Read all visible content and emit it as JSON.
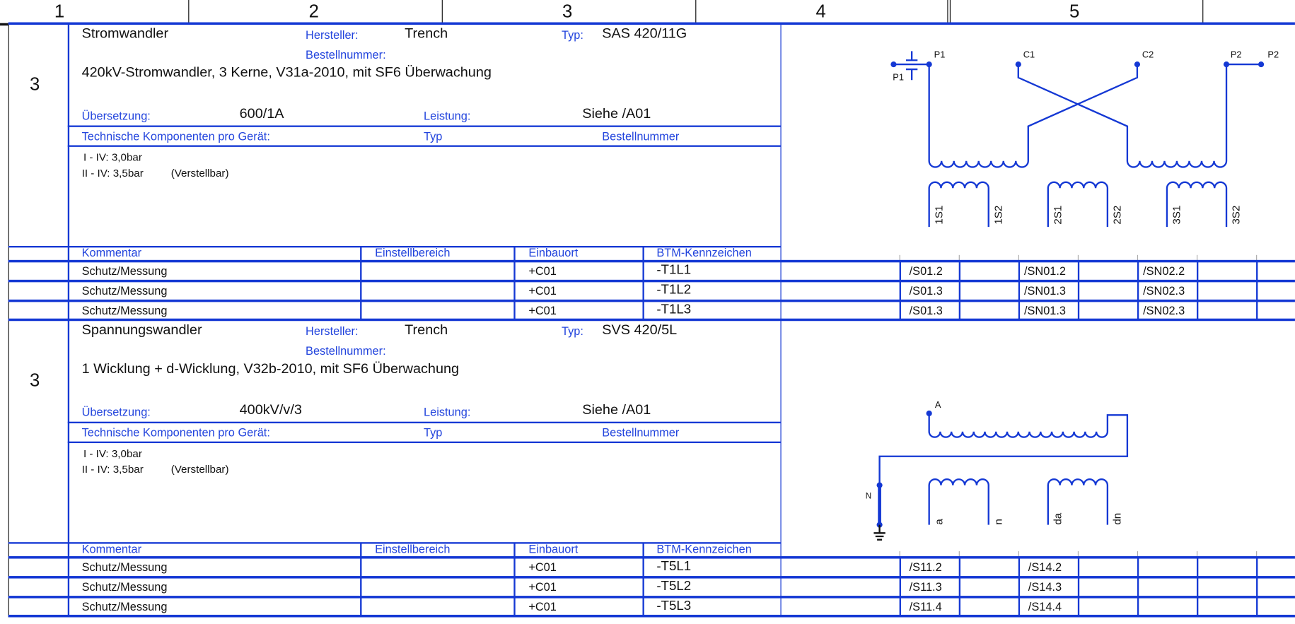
{
  "header": {
    "columns": [
      "1",
      "2",
      "3",
      "4",
      "5"
    ]
  },
  "colors": {
    "line": "#1438d4",
    "label": "#2244dd",
    "text": "#111111"
  },
  "sections": [
    {
      "index": "3",
      "title": "Stromwandler",
      "manufacturer_label": "Hersteller:",
      "manufacturer": "Trench",
      "type_label": "Typ:",
      "type": "SAS 420/11G",
      "order_label": "Bestellnummer:",
      "description": "420kV-Stromwandler, 3 Kerne, V31a-2010, mit SF6 Überwachung",
      "ratio_label": "Übersetzung:",
      "ratio": "600/1A",
      "power_label": "Leistung:",
      "power": "Siehe /A01",
      "components": {
        "label": "Technische Komponenten pro Gerät:",
        "type": "Typ",
        "order": "Bestellnummer"
      },
      "notes": [
        "I - IV: 3,0bar",
        "II - IV: 3,5bar",
        "(Verstellbar)"
      ],
      "table_headers": [
        "Kommentar",
        "Einstellbereich",
        "Einbauort",
        "BTM-Kennzeichen"
      ],
      "rows": [
        {
          "comment": "Schutz/Messung",
          "range": "",
          "location": "+C01",
          "btm": "-T1L1",
          "refs": [
            "/S01.2",
            "/SN01.2",
            "/SN02.2"
          ]
        },
        {
          "comment": "Schutz/Messung",
          "range": "",
          "location": "+C01",
          "btm": "-T1L2",
          "refs": [
            "/S01.3",
            "/SN01.3",
            "/SN02.3"
          ]
        },
        {
          "comment": "Schutz/Messung",
          "range": "",
          "location": "+C01",
          "btm": "-T1L3",
          "refs": [
            "/S01.3",
            "/SN01.3",
            "/SN02.3"
          ]
        }
      ]
    },
    {
      "index": "3",
      "title": "Spannungswandler",
      "manufacturer_label": "Hersteller:",
      "manufacturer": "Trench",
      "type_label": "Typ:",
      "type": "SVS 420/5L",
      "order_label": "Bestellnummer:",
      "description": "1 Wicklung + d-Wicklung, V32b-2010, mit SF6 Überwachung",
      "ratio_label": "Übersetzung:",
      "ratio": "400kV/v/3",
      "power_label": "Leistung:",
      "power": "Siehe /A01",
      "components": {
        "label": "Technische Komponenten pro Gerät:",
        "type": "Typ",
        "order": "Bestellnummer"
      },
      "notes": [
        "I - IV: 3,0bar",
        "II - IV: 3,5bar",
        "(Verstellbar)"
      ],
      "table_headers": [
        "Kommentar",
        "Einstellbereich",
        "Einbauort",
        "BTM-Kennzeichen"
      ],
      "rows": [
        {
          "comment": "Schutz/Messung",
          "range": "",
          "location": "+C01",
          "btm": "-T5L1",
          "refs": [
            "/S11.2",
            "/S14.2",
            ""
          ]
        },
        {
          "comment": "Schutz/Messung",
          "range": "",
          "location": "+C01",
          "btm": "-T5L2",
          "refs": [
            "/S11.3",
            "/S14.3",
            ""
          ]
        },
        {
          "comment": "Schutz/Messung",
          "range": "",
          "location": "+C01",
          "btm": "-T5L3",
          "refs": [
            "/S11.4",
            "/S14.4",
            ""
          ]
        }
      ]
    }
  ],
  "ct_diagram": {
    "terminals": [
      "P1",
      "P1",
      "C1",
      "C2",
      "P2",
      "P2"
    ],
    "secondaries": [
      "1S1",
      "1S2",
      "2S1",
      "2S2",
      "3S1",
      "3S2"
    ]
  },
  "vt_diagram": {
    "terminals": [
      "A",
      "N"
    ],
    "secondaries": [
      "a",
      "n",
      "da",
      "dn"
    ]
  }
}
